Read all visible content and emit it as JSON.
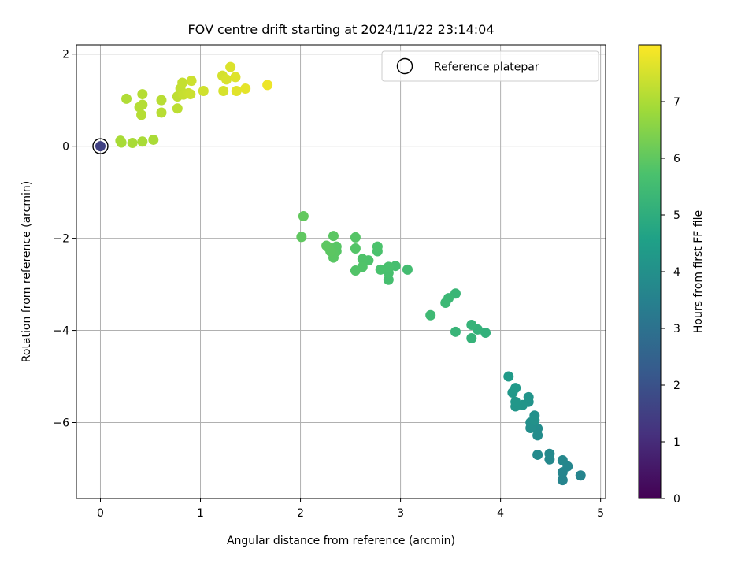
{
  "chart_data": {
    "type": "scatter",
    "title": "FOV centre drift starting at 2024/11/22 23:14:04",
    "xlabel": "Angular distance from reference (arcmin)",
    "ylabel": "Rotation from reference (arcmin)",
    "xlim": [
      -0.24,
      5.05
    ],
    "ylim": [
      -7.65,
      2.2
    ],
    "xticks": [
      0,
      1,
      2,
      3,
      4,
      5
    ],
    "xtick_labels": [
      "0",
      "1",
      "2",
      "3",
      "4",
      "5"
    ],
    "yticks": [
      2,
      0,
      -2,
      -4,
      -6
    ],
    "ytick_labels": [
      "2",
      "0",
      "−2",
      "−4",
      "−6"
    ],
    "grid": true,
    "legend": {
      "position": "top-right",
      "entries": [
        {
          "label": "Reference platepar",
          "marker": "open-circle"
        }
      ]
    },
    "colorbar": {
      "label": "Hours from first FF file",
      "colormap": "viridis",
      "range": [
        0,
        8
      ],
      "ticks": [
        0,
        1,
        2,
        3,
        4,
        5,
        6,
        7
      ],
      "tick_labels": [
        "0",
        "1",
        "2",
        "3",
        "4",
        "5",
        "6",
        "7"
      ]
    },
    "colors": [
      "#440154",
      "#46327e",
      "#365c8d",
      "#277f8e",
      "#1fa187",
      "#4ac16d",
      "#a0da39",
      "#fde725"
    ],
    "reference_point": {
      "x": 0,
      "y": 0,
      "hours": 1.55
    },
    "points": [
      [
        0.0,
        0.0,
        1.55
      ],
      [
        4.8,
        -7.15,
        3.6
      ],
      [
        4.62,
        -7.25,
        3.6
      ],
      [
        4.62,
        -7.08,
        3.62
      ],
      [
        4.67,
        -6.95,
        3.65
      ],
      [
        4.62,
        -6.82,
        3.7
      ],
      [
        4.49,
        -6.8,
        3.72
      ],
      [
        4.49,
        -6.68,
        3.75
      ],
      [
        4.37,
        -6.7,
        3.8
      ],
      [
        4.37,
        -6.28,
        3.85
      ],
      [
        4.37,
        -6.13,
        3.88
      ],
      [
        4.3,
        -6.12,
        3.92
      ],
      [
        4.3,
        -6.0,
        3.95
      ],
      [
        4.34,
        -5.85,
        4.0
      ],
      [
        4.34,
        -5.95,
        4.02
      ],
      [
        4.28,
        -5.55,
        4.1
      ],
      [
        4.28,
        -5.45,
        4.15
      ],
      [
        4.22,
        -5.62,
        4.18
      ],
      [
        4.15,
        -5.65,
        4.2
      ],
      [
        4.15,
        -5.55,
        4.25
      ],
      [
        4.12,
        -5.35,
        4.28
      ],
      [
        4.15,
        -5.25,
        4.3
      ],
      [
        4.08,
        -5.0,
        4.35
      ],
      [
        3.85,
        -4.05,
        5.1
      ],
      [
        3.77,
        -3.98,
        5.15
      ],
      [
        3.71,
        -4.17,
        5.18
      ],
      [
        3.71,
        -3.88,
        5.2
      ],
      [
        3.55,
        -4.03,
        5.25
      ],
      [
        3.55,
        -3.2,
        5.3
      ],
      [
        3.48,
        -3.3,
        5.35
      ],
      [
        3.45,
        -3.4,
        5.38
      ],
      [
        3.3,
        -3.67,
        5.42
      ],
      [
        3.07,
        -2.68,
        5.55
      ],
      [
        2.95,
        -2.6,
        5.6
      ],
      [
        2.88,
        -2.9,
        5.62
      ],
      [
        2.88,
        -2.75,
        5.65
      ],
      [
        2.88,
        -2.62,
        5.68
      ],
      [
        2.8,
        -2.68,
        5.7
      ],
      [
        2.77,
        -2.28,
        5.72
      ],
      [
        2.77,
        -2.18,
        5.74
      ],
      [
        2.68,
        -2.48,
        5.76
      ],
      [
        2.62,
        -2.45,
        5.78
      ],
      [
        2.62,
        -2.62,
        5.8
      ],
      [
        2.55,
        -2.7,
        5.82
      ],
      [
        2.55,
        -2.22,
        5.84
      ],
      [
        2.55,
        -1.98,
        5.86
      ],
      [
        2.36,
        -2.28,
        5.88
      ],
      [
        2.36,
        -2.18,
        5.9
      ],
      [
        2.33,
        -2.42,
        5.92
      ],
      [
        2.33,
        -2.32,
        5.93
      ],
      [
        2.33,
        -1.95,
        5.94
      ],
      [
        2.3,
        -2.28,
        5.95
      ],
      [
        2.28,
        -2.2,
        5.96
      ],
      [
        2.26,
        -2.16,
        5.97
      ],
      [
        2.01,
        -1.97,
        6.0
      ],
      [
        2.03,
        -1.52,
        6.05
      ],
      [
        0.2,
        0.12,
        6.95
      ],
      [
        0.21,
        0.08,
        6.95
      ],
      [
        0.32,
        0.07,
        6.96
      ],
      [
        0.42,
        0.1,
        6.97
      ],
      [
        0.53,
        0.14,
        6.98
      ],
      [
        0.26,
        1.03,
        7.05
      ],
      [
        0.39,
        0.85,
        7.1
      ],
      [
        0.42,
        0.9,
        7.1
      ],
      [
        0.41,
        0.68,
        7.12
      ],
      [
        0.42,
        1.13,
        7.12
      ],
      [
        0.61,
        1.0,
        7.15
      ],
      [
        0.61,
        0.73,
        7.15
      ],
      [
        0.77,
        0.82,
        7.2
      ],
      [
        0.77,
        1.08,
        7.22
      ],
      [
        0.8,
        1.15,
        7.25
      ],
      [
        0.8,
        1.25,
        7.28
      ],
      [
        0.82,
        1.38,
        7.3
      ],
      [
        0.83,
        1.12,
        7.32
      ],
      [
        0.88,
        1.15,
        7.35
      ],
      [
        0.9,
        1.13,
        7.38
      ],
      [
        0.91,
        1.42,
        7.4
      ],
      [
        1.03,
        1.2,
        7.45
      ],
      [
        1.22,
        1.53,
        7.5
      ],
      [
        1.23,
        1.2,
        7.52
      ],
      [
        1.26,
        1.45,
        7.55
      ],
      [
        1.3,
        1.72,
        7.58
      ],
      [
        1.35,
        1.5,
        7.62
      ],
      [
        1.36,
        1.2,
        7.65
      ],
      [
        1.45,
        1.25,
        7.7
      ],
      [
        1.67,
        1.33,
        7.8
      ]
    ]
  }
}
